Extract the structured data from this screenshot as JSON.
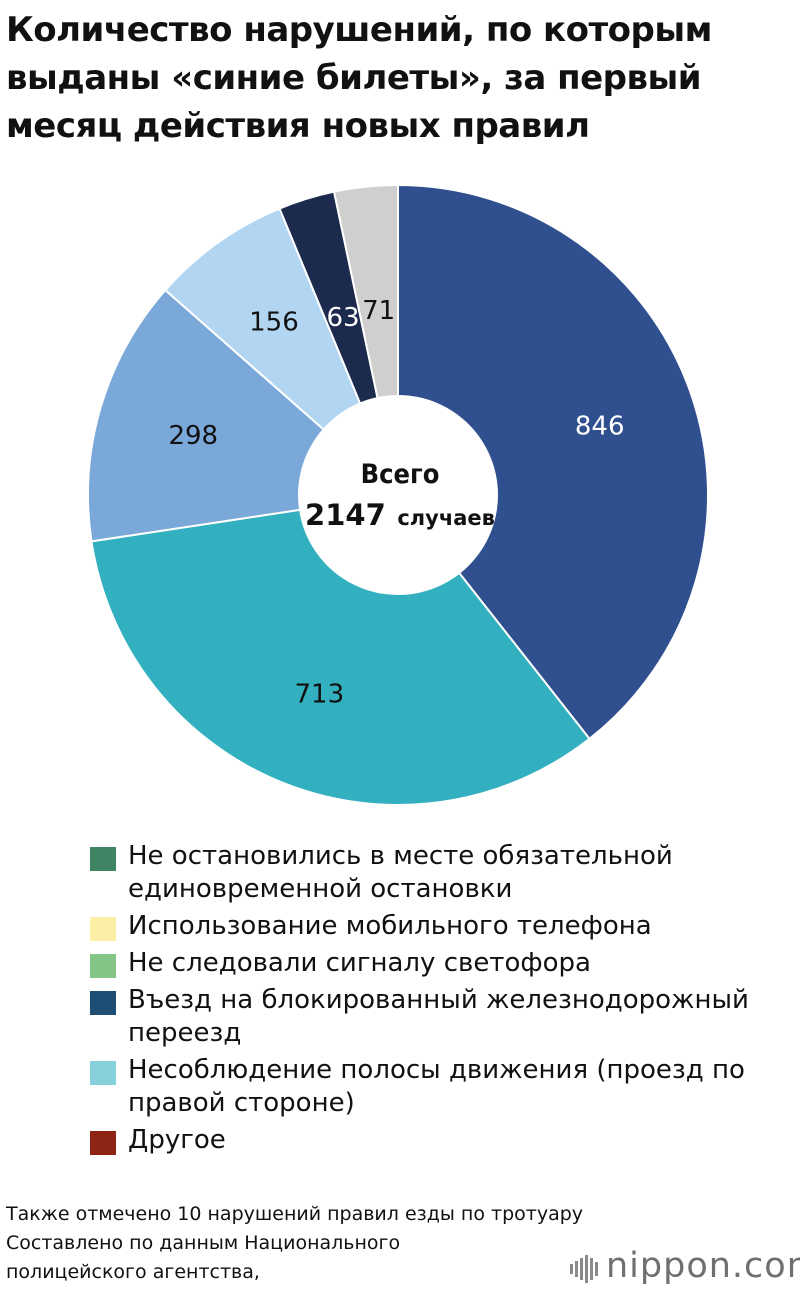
{
  "title": "Количество нарушений, по которым выданы «синие билеты», за первый месяц действия новых правил",
  "chart_data": {
    "type": "pie",
    "title": "Количество нарушений, по которым выданы «синие билеты», за первый месяц действия новых правил",
    "center_label": {
      "line1": "Всего",
      "number": "2147",
      "unit": "случаев"
    },
    "slices": [
      {
        "value": 846,
        "label": "846",
        "color": "#2f4f8e",
        "label_color": "#ffffff"
      },
      {
        "value": 713,
        "label": "713",
        "color": "#33b0bf",
        "label_color": "#111111"
      },
      {
        "value": 298,
        "label": "298",
        "color": "#79a8d9",
        "label_color": "#111111"
      },
      {
        "value": 156,
        "label": "156",
        "color": "#b2d5f2",
        "label_color": "#111111"
      },
      {
        "value": 63,
        "label": "63",
        "color": "#1c2b4d",
        "label_color": "#ffffff"
      },
      {
        "value": 71,
        "label": "71",
        "color": "#cfcfcf",
        "label_color": "#111111"
      }
    ]
  },
  "legend": [
    {
      "label": "Не остановились в месте обязательной единовременной остановки",
      "color": "#3f8564"
    },
    {
      "label": "Использование мобильного телефона",
      "color": "#fbeea5"
    },
    {
      "label": "Не следовали сигналу светофора",
      "color": "#84c585"
    },
    {
      "label": "Въезд на блокированный железнодорожный переезд",
      "color": "#1e4e73"
    },
    {
      "label": "Несоблюдение полосы движения (проезд по правой стороне)",
      "color": "#86d0dc"
    },
    {
      "label": "Другое",
      "color": "#8e2414"
    }
  ],
  "footnote": [
    "Также отмечено 10 нарушений правил езды по тротуару",
    "Составлено по данным Национального",
    "полицейского агентства,"
  ],
  "brand": "nippon.com"
}
